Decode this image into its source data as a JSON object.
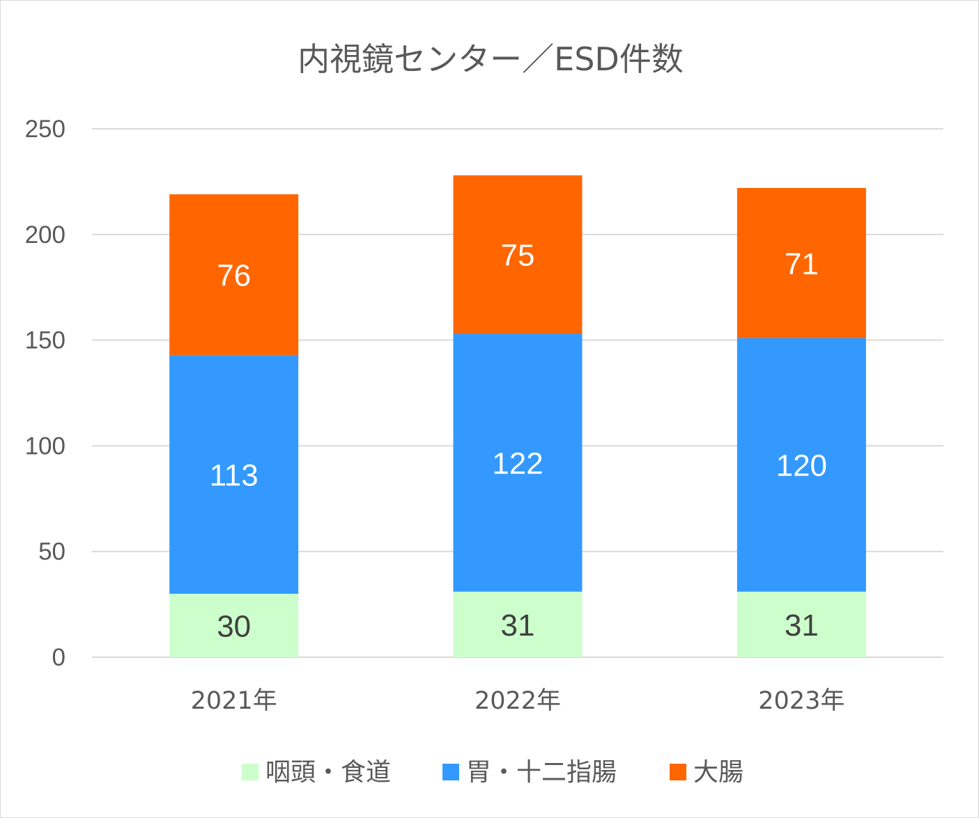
{
  "chart_data": {
    "type": "bar",
    "stacked": true,
    "title": "内視鏡センター／ESD件数",
    "categories": [
      "2021年",
      "2022年",
      "2023年"
    ],
    "ylim": [
      0,
      250
    ],
    "yticks": [
      "0",
      "50",
      "100",
      "150",
      "200",
      "250"
    ],
    "grid": true,
    "legend_position": "bottom",
    "series": [
      {
        "name": "咽頭・食道",
        "values": [
          30,
          31,
          31
        ],
        "color": "#ccffcc",
        "label_color": "#404040"
      },
      {
        "name": "胃・十二指腸",
        "values": [
          113,
          122,
          120
        ],
        "color": "#3399ff",
        "label_color": "#ffffff"
      },
      {
        "name": "大腸",
        "values": [
          76,
          75,
          71
        ],
        "color": "#ff6600",
        "label_color": "#ffffff"
      }
    ]
  }
}
